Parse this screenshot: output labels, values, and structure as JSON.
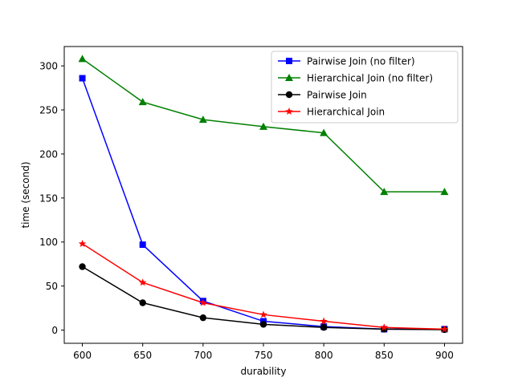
{
  "chart_data": {
    "type": "line",
    "title": "",
    "xlabel": "durability",
    "ylabel": "time (second)",
    "x": [
      600,
      650,
      700,
      750,
      800,
      850,
      900
    ],
    "xlim": [
      585,
      915
    ],
    "ylim": [
      -15,
      322
    ],
    "xticks": [
      600,
      650,
      700,
      750,
      800,
      850,
      900
    ],
    "yticks": [
      0,
      50,
      100,
      150,
      200,
      250,
      300
    ],
    "grid": false,
    "legend_position": "top-right",
    "series": [
      {
        "name": "Pairwise Join (no filter)",
        "color": "#0000ff",
        "marker": "square",
        "values": [
          286,
          97,
          33,
          10,
          4,
          1,
          1
        ]
      },
      {
        "name": "Hierarchical Join (no filter)",
        "color": "#008000",
        "marker": "triangle",
        "values": [
          308,
          259,
          239,
          231,
          224,
          157,
          157
        ]
      },
      {
        "name": "Pairwise Join",
        "color": "#000000",
        "marker": "circle",
        "values": [
          72,
          31,
          14,
          6.5,
          3,
          1,
          0.5
        ]
      },
      {
        "name": "Hierarchical Join",
        "color": "#ff0000",
        "marker": "star",
        "values": [
          98,
          54,
          31,
          17.5,
          10,
          3,
          1
        ]
      }
    ]
  }
}
